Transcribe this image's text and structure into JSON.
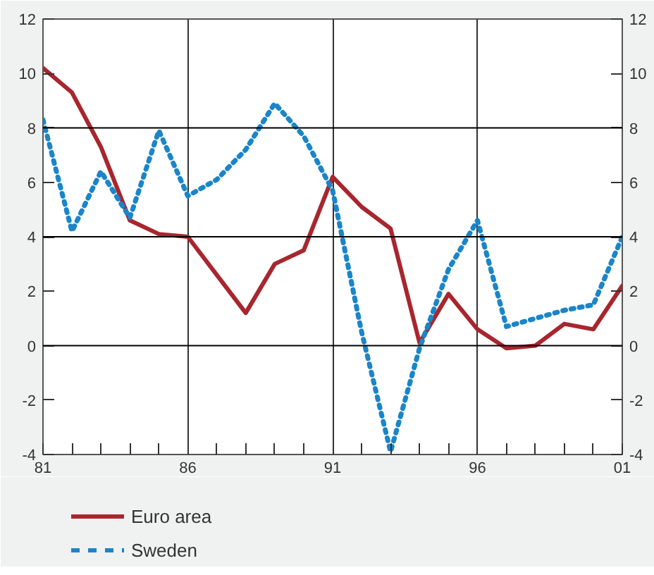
{
  "chart_data": {
    "type": "line",
    "x": [
      1981,
      1982,
      1983,
      1984,
      1985,
      1986,
      1987,
      1988,
      1989,
      1990,
      1991,
      1992,
      1993,
      1994,
      1995,
      1996,
      1997,
      1998,
      1999,
      2000,
      2001
    ],
    "series": [
      {
        "name": "Euro area",
        "color": "#a8262e",
        "line_style": "solid",
        "values": [
          10.2,
          9.3,
          7.3,
          4.6,
          4.1,
          4.0,
          2.6,
          1.2,
          3.0,
          3.5,
          6.2,
          5.1,
          4.3,
          0.1,
          1.9,
          0.6,
          -0.1,
          0.0,
          0.8,
          0.6,
          2.2
        ]
      },
      {
        "name": "Sweden",
        "color": "#1a85c8",
        "line_style": "dotted",
        "values": [
          8.3,
          4.2,
          6.4,
          4.7,
          7.9,
          5.5,
          6.1,
          7.2,
          8.9,
          7.7,
          5.7,
          0.5,
          -3.9,
          -0.1,
          2.8,
          4.6,
          0.7,
          1.0,
          1.3,
          1.5,
          4.0
        ]
      }
    ],
    "xlim": [
      1981,
      2001
    ],
    "xticks": [
      {
        "value": 1981,
        "label": "81"
      },
      {
        "value": 1982,
        "label": null
      },
      {
        "value": 1983,
        "label": null
      },
      {
        "value": 1984,
        "label": null
      },
      {
        "value": 1985,
        "label": null
      },
      {
        "value": 1986,
        "label": "86"
      },
      {
        "value": 1987,
        "label": null
      },
      {
        "value": 1988,
        "label": null
      },
      {
        "value": 1989,
        "label": null
      },
      {
        "value": 1990,
        "label": null
      },
      {
        "value": 1991,
        "label": "91"
      },
      {
        "value": 1992,
        "label": null
      },
      {
        "value": 1993,
        "label": null
      },
      {
        "value": 1994,
        "label": null
      },
      {
        "value": 1995,
        "label": null
      },
      {
        "value": 1996,
        "label": "96"
      },
      {
        "value": 1997,
        "label": null
      },
      {
        "value": 1998,
        "label": null
      },
      {
        "value": 1999,
        "label": null
      },
      {
        "value": 2000,
        "label": null
      },
      {
        "value": 2001,
        "label": "01"
      }
    ],
    "ylim": [
      -4,
      12
    ],
    "yticks": [
      -4,
      -2,
      0,
      2,
      4,
      6,
      8,
      10,
      12
    ],
    "y2lim": [
      -4,
      12
    ],
    "y2ticks": [
      -4,
      -2,
      0,
      2,
      4,
      6,
      8,
      10,
      12
    ],
    "ref_lines": [
      {
        "axis": "y",
        "value": 0,
        "color": "#000000"
      },
      {
        "axis": "y",
        "value": 4,
        "color": "#000000"
      },
      {
        "axis": "y",
        "value": 8,
        "color": "#000000"
      }
    ],
    "grid": "x",
    "legend": "bottom"
  }
}
